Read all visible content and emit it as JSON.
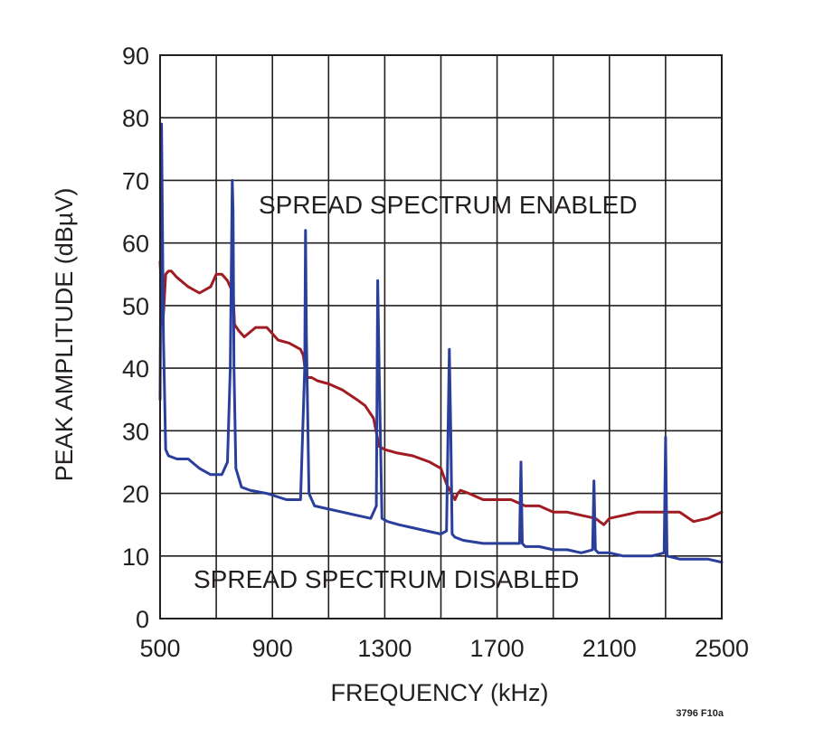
{
  "chart_data": {
    "type": "line",
    "xlabel": "FREQUENCY (kHz)",
    "ylabel": "PEAK AMPLITUDE (dBµV)",
    "xlim": [
      500,
      2500
    ],
    "ylim": [
      0,
      90
    ],
    "xticks": [
      500,
      900,
      1300,
      1700,
      2100,
      2500
    ],
    "yticks": [
      0,
      10,
      20,
      30,
      40,
      50,
      60,
      70,
      80,
      90
    ],
    "grid": true,
    "annotations": [
      "SPREAD SPECTRUM ENABLED",
      "SPREAD SPECTRUM DISABLED"
    ],
    "figure_id": "3796 F10a",
    "series": [
      {
        "color": "#a01c22",
        "x": [
          500,
          510,
          520,
          530,
          540,
          560,
          600,
          640,
          680,
          700,
          720,
          740,
          760,
          765,
          780,
          800,
          840,
          880,
          900,
          920,
          960,
          1000,
          1010,
          1020,
          1040,
          1060,
          1100,
          1150,
          1200,
          1230,
          1260,
          1280,
          1300,
          1340,
          1400,
          1460,
          1500,
          1520,
          1550,
          1560,
          1570,
          1600,
          1650,
          1700,
          1750,
          1800,
          1850,
          1900,
          1950,
          2000,
          2050,
          2080,
          2100,
          2150,
          2200,
          2250,
          2300,
          2350,
          2400,
          2450,
          2500
        ],
        "y": [
          57,
          47,
          55,
          55.5,
          55.5,
          54.5,
          53,
          52,
          53,
          55,
          55,
          54,
          52,
          47,
          46,
          45,
          46.5,
          46.5,
          45.5,
          44.5,
          44,
          43,
          42,
          38.5,
          38.5,
          38,
          37.5,
          36.5,
          35,
          34,
          32,
          27.5,
          27,
          26.5,
          26,
          25,
          24,
          21.5,
          19,
          20,
          20.5,
          20,
          19,
          19,
          19,
          18,
          18,
          17,
          17,
          16.5,
          16,
          15,
          16,
          16.5,
          17,
          17,
          17,
          17,
          15.5,
          16,
          17
        ]
      },
      {
        "color": "#2a3f9c",
        "x": [
          500,
          505,
          512,
          520,
          530,
          560,
          600,
          640,
          680,
          720,
          740,
          750,
          757,
          760,
          763,
          770,
          790,
          820,
          880,
          950,
          1000,
          1015,
          1018,
          1021,
          1030,
          1050,
          1100,
          1150,
          1200,
          1250,
          1270,
          1275,
          1280,
          1290,
          1310,
          1350,
          1400,
          1450,
          1500,
          1520,
          1530,
          1535,
          1540,
          1550,
          1580,
          1650,
          1700,
          1750,
          1780,
          1785,
          1790,
          1800,
          1850,
          1900,
          1950,
          2000,
          2040,
          2045,
          2050,
          2060,
          2100,
          2150,
          2200,
          2250,
          2295,
          2300,
          2305,
          2350,
          2400,
          2450,
          2500
        ],
        "y": [
          35,
          79,
          45,
          27,
          26,
          25.5,
          25.5,
          24,
          23,
          23,
          25,
          40,
          70,
          65,
          40,
          24,
          21,
          20.5,
          20,
          19,
          19,
          40,
          62,
          45,
          20,
          18,
          17.5,
          17,
          16.5,
          16,
          18,
          54,
          40,
          16,
          15.5,
          15,
          14.5,
          14,
          13.5,
          14,
          43,
          30,
          13.5,
          13,
          12.5,
          12,
          12,
          12,
          12,
          25,
          12,
          11.5,
          11.5,
          11,
          11,
          10.5,
          11,
          22,
          11,
          10.5,
          10.5,
          10,
          10,
          10,
          10.5,
          29,
          10,
          9.5,
          9.5,
          9.5,
          9
        ]
      }
    ]
  }
}
